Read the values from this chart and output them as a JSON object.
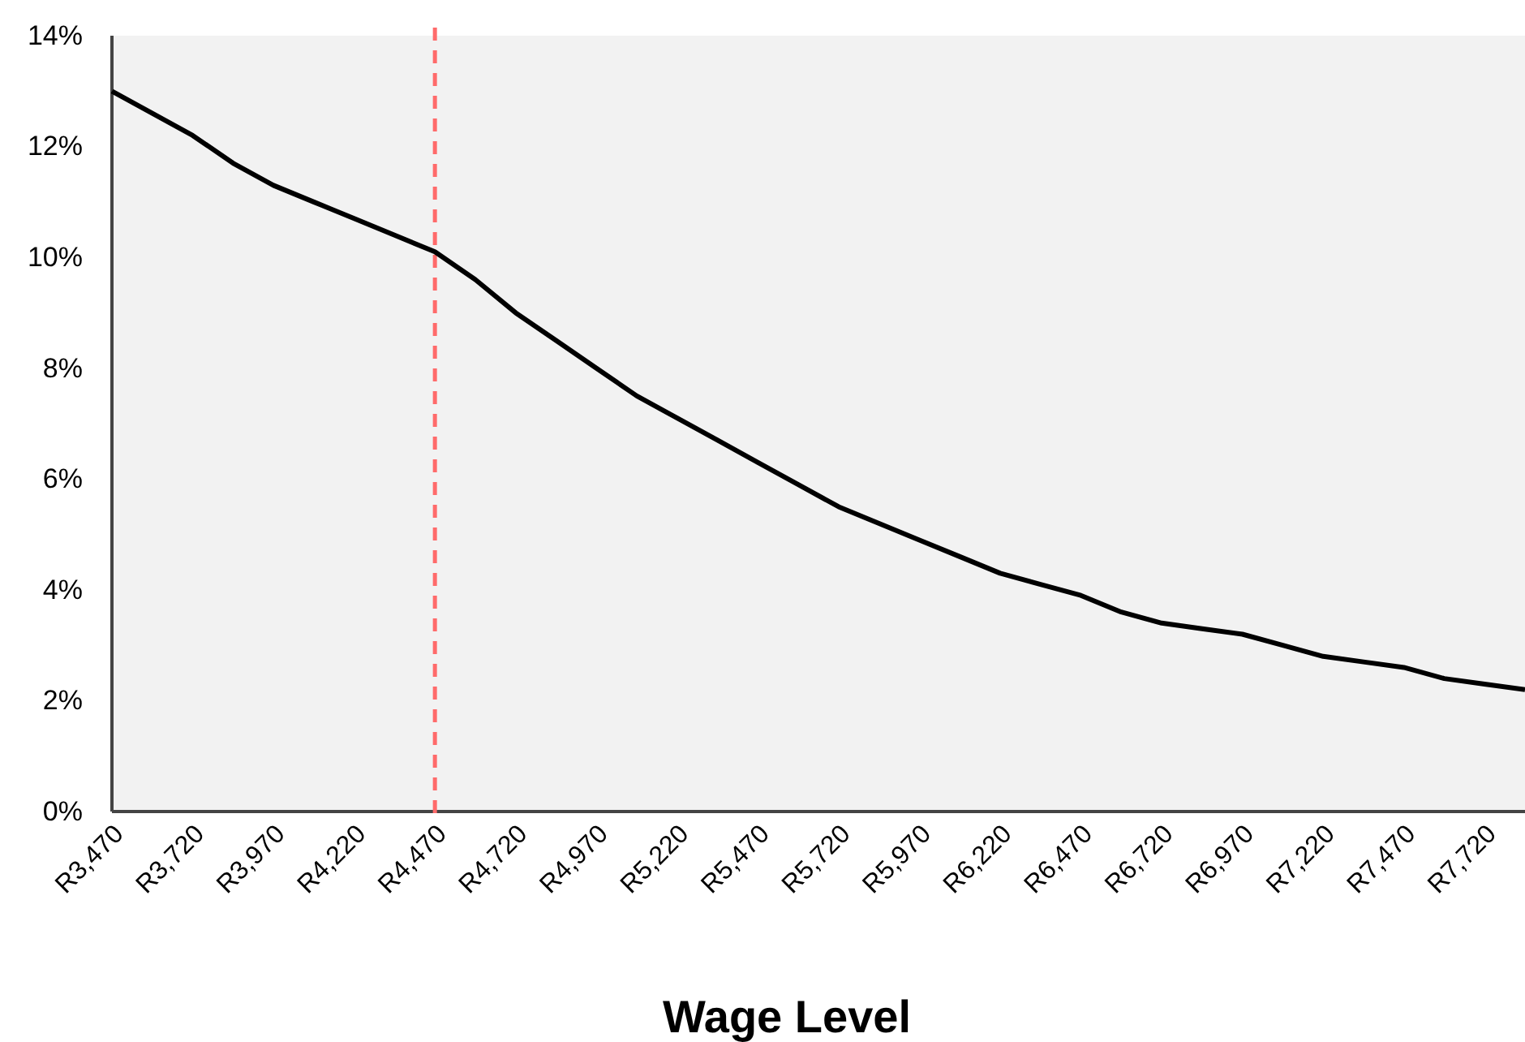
{
  "chart_data": {
    "type": "line",
    "xlabel": "Wage Level",
    "categories": [
      "R3,470",
      null,
      "R3,720",
      null,
      "R3,970",
      null,
      "R4,220",
      null,
      "R4,470",
      null,
      "R4,720",
      null,
      "R4,970",
      null,
      "R5,220",
      null,
      "R5,470",
      null,
      "R5,720",
      null,
      "R5,970",
      null,
      "R6,220",
      null,
      "R6,470",
      null,
      "R6,720",
      null,
      "R6,970",
      null,
      "R7,220",
      null,
      "R7,470",
      null,
      "R7,720",
      null
    ],
    "series": [
      {
        "color": "#000000",
        "values": [
          13.0,
          12.6,
          12.2,
          11.7,
          11.3,
          11.0,
          10.7,
          10.4,
          10.1,
          9.6,
          9.0,
          8.5,
          8.0,
          7.5,
          7.1,
          6.7,
          6.3,
          5.9,
          5.5,
          5.2,
          4.9,
          4.6,
          4.3,
          4.1,
          3.9,
          3.6,
          3.4,
          3.3,
          3.2,
          3.0,
          2.8,
          2.7,
          2.6,
          2.4,
          2.3,
          2.2
        ]
      }
    ],
    "ylim": [
      0,
      14
    ],
    "yticks": [
      {
        "value": 0,
        "label": "0%"
      },
      {
        "value": 2,
        "label": "2%"
      },
      {
        "value": 4,
        "label": "4%"
      },
      {
        "value": 6,
        "label": "6%"
      },
      {
        "value": 8,
        "label": "8%"
      },
      {
        "value": 10,
        "label": "10%"
      },
      {
        "value": 12,
        "label": "12%"
      },
      {
        "value": 14,
        "label": "14%"
      }
    ],
    "ref_lines": [
      {
        "axis": "x",
        "value": "R4,470",
        "color": "#ff6b6b",
        "line_style": "dashed"
      }
    ],
    "grid": false,
    "marker": "none",
    "line_style": "solid"
  }
}
